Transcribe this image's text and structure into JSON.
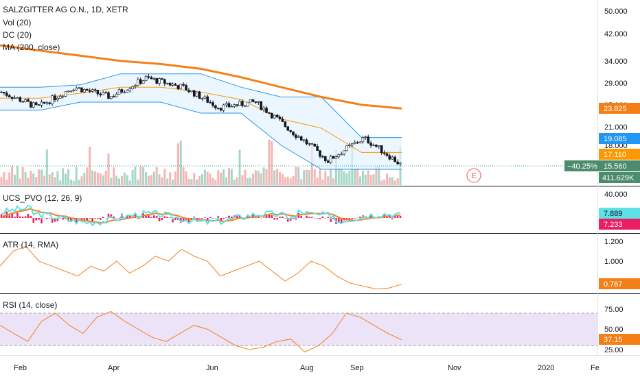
{
  "header": {
    "title": "SALZGITTER AG O.N., 1D, XETR"
  },
  "chart_data": [
    {
      "name": "price",
      "type": "candlestick",
      "scale": "log",
      "yticks": [
        "50.000",
        "42.000",
        "34.000",
        "29.000",
        "25.000",
        "21.000",
        "18.000"
      ],
      "ytick_values": [
        50,
        42,
        34,
        29,
        25,
        21,
        18
      ],
      "indicator_labels": [
        "Vol (20)",
        "DC (20)",
        "MA (200, close)"
      ],
      "ma200_values": [
        38.5,
        37.0,
        35.6,
        34.2,
        33.4,
        32.2,
        30.2,
        28.0,
        26.0,
        24.5,
        23.825
      ],
      "donchian_upper": [
        28,
        28,
        28.5,
        31,
        31,
        31,
        28,
        26,
        26,
        19.1,
        19.1
      ],
      "donchian_lower": [
        23.5,
        23.5,
        25,
        25,
        25,
        23,
        23,
        18,
        15,
        15,
        15
      ],
      "close_values": [
        27,
        24,
        28,
        26,
        30,
        28,
        24,
        25,
        20,
        16,
        19,
        15.56
      ],
      "badges": {
        "ma_last": "23.825",
        "dc_upper_last": "19.085",
        "dc_mid_last": "17.110",
        "change": "−40.25%",
        "price_last": "15.560",
        "volume_last": "411.629K"
      },
      "event_marker": "E"
    },
    {
      "name": "pvo",
      "type": "line+histogram",
      "title": "UCS_PVO (12, 26, 9)",
      "yticks": [
        "40.000"
      ],
      "badges": {
        "pvo_last": "7.889",
        "signal_last": "7.233"
      }
    },
    {
      "name": "atr",
      "type": "line",
      "title": "ATR (14, RMA)",
      "yticks": [
        "1.200",
        "1.000"
      ],
      "ytick_values": [
        1.2,
        1.0
      ],
      "values": [
        0.95,
        1.1,
        1.15,
        1.0,
        0.95,
        0.9,
        0.85,
        0.95,
        0.9,
        1.0,
        0.88,
        0.95,
        1.05,
        1.0,
        1.12,
        1.05,
        1.0,
        0.85,
        0.9,
        0.95,
        1.0,
        0.9,
        0.8,
        0.88,
        1.0,
        0.95,
        0.85,
        0.78,
        0.75,
        0.72,
        0.73,
        0.767
      ],
      "badges": {
        "atr_last": "0.767"
      }
    },
    {
      "name": "rsi",
      "type": "line",
      "title": "RSI (14, close)",
      "yticks": [
        "75.00",
        "50.00",
        "25.00"
      ],
      "ytick_values": [
        75,
        50,
        25
      ],
      "band": [
        30,
        70
      ],
      "values": [
        55,
        45,
        35,
        60,
        70,
        55,
        45,
        65,
        72,
        60,
        50,
        40,
        35,
        45,
        55,
        50,
        40,
        30,
        25,
        28,
        35,
        38,
        22,
        30,
        45,
        70,
        65,
        55,
        45,
        37.15
      ],
      "badges": {
        "rsi_last": "37.15"
      }
    }
  ],
  "time_axis": {
    "labels": [
      "Feb",
      "Apr",
      "Jun",
      "Aug",
      "Sep",
      "Nov",
      "2020",
      "Fe"
    ]
  },
  "colors": {
    "ma": "#f57f17",
    "dc_band": "#2196f3",
    "dc_mid": "#ff9800",
    "candle_up": "#26a69a",
    "candle_down": "#ef5350",
    "candle_body": "#131722",
    "pvo_line": "#5de0e6",
    "pvo_signal": "#f57f17",
    "pvo_hist": "#e91e63",
    "atr_line": "#f57f17",
    "rsi_line": "#f57f17",
    "rsi_band": "#e6d7f5"
  }
}
